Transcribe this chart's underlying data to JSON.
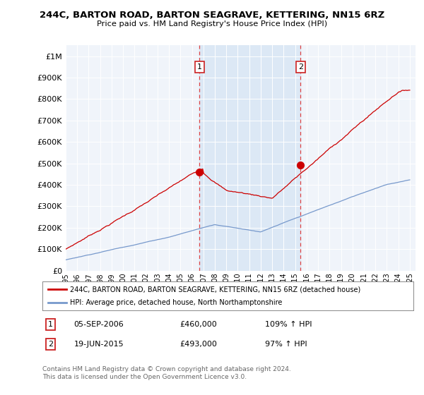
{
  "title": "244C, BARTON ROAD, BARTON SEAGRAVE, KETTERING, NN15 6RZ",
  "subtitle": "Price paid vs. HM Land Registry's House Price Index (HPI)",
  "x_start": 1995.0,
  "x_end": 2025.5,
  "y_min": 0,
  "y_max": 1050000,
  "y_ticks": [
    0,
    100000,
    200000,
    300000,
    400000,
    500000,
    600000,
    700000,
    800000,
    900000,
    1000000
  ],
  "y_tick_labels": [
    "£0",
    "£100K",
    "£200K",
    "£300K",
    "£400K",
    "£500K",
    "£600K",
    "£700K",
    "£800K",
    "£900K",
    "£1M"
  ],
  "x_ticks": [
    1995,
    1996,
    1997,
    1998,
    1999,
    2000,
    2001,
    2002,
    2003,
    2004,
    2005,
    2006,
    2007,
    2008,
    2009,
    2010,
    2011,
    2012,
    2013,
    2014,
    2015,
    2016,
    2017,
    2018,
    2019,
    2020,
    2021,
    2022,
    2023,
    2024,
    2025
  ],
  "sale1_x": 2006.67,
  "sale1_y": 460000,
  "sale1_label": "1",
  "sale1_date": "05-SEP-2006",
  "sale1_price": "£460,000",
  "sale1_hpi": "109% ↑ HPI",
  "sale2_x": 2015.47,
  "sale2_y": 493000,
  "sale2_label": "2",
  "sale2_date": "19-JUN-2015",
  "sale2_price": "£493,000",
  "sale2_hpi": "97% ↑ HPI",
  "red_line_color": "#cc0000",
  "blue_line_color": "#7799cc",
  "vline_color": "#dd4444",
  "shade_color": "#dce8f5",
  "sale_marker_color": "#cc0000",
  "sale_marker_size": 7,
  "legend_label_red": "244C, BARTON ROAD, BARTON SEAGRAVE, KETTERING, NN15 6RZ (detached house)",
  "legend_label_blue": "HPI: Average price, detached house, North Northamptonshire",
  "footer1": "Contains HM Land Registry data © Crown copyright and database right 2024.",
  "footer2": "This data is licensed under the Open Government Licence v3.0.",
  "plot_bg_color": "#f0f4fa"
}
